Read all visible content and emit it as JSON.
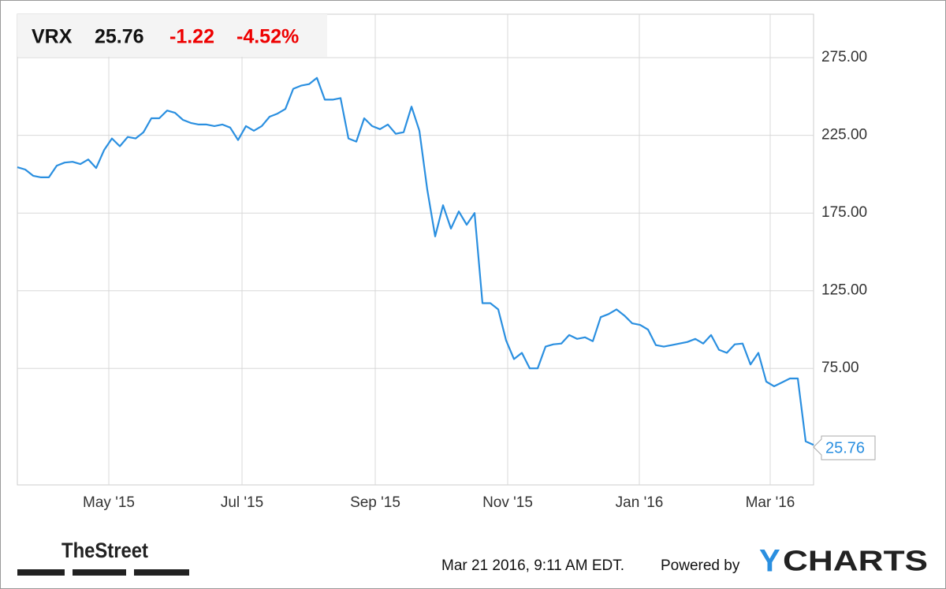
{
  "chart_data": {
    "type": "line",
    "header": {
      "symbol": "VRX",
      "price": "25.76",
      "change": "-1.22",
      "change_pct": "-4.52%"
    },
    "color": "#2a8fe0",
    "values": [
      204.5,
      203,
      199,
      198,
      198,
      205.5,
      207.5,
      208,
      206.5,
      209.5,
      204,
      215.5,
      223,
      218,
      224,
      223,
      227,
      236,
      236,
      241,
      239.5,
      235,
      233,
      232,
      232,
      231,
      232,
      230,
      222,
      231,
      228,
      231,
      237,
      239,
      242,
      255,
      257,
      258,
      262,
      248,
      248,
      249,
      223,
      221,
      236,
      231,
      229,
      232,
      226,
      227,
      243.5,
      228,
      190,
      160,
      180,
      165,
      176,
      167.5,
      175,
      117,
      117,
      113,
      93,
      81,
      85,
      75,
      75,
      89,
      90.5,
      91,
      96.5,
      94,
      95,
      92.5,
      108,
      110,
      113,
      109,
      104,
      103,
      100,
      90,
      89,
      90,
      91,
      92,
      94,
      91,
      96.5,
      87,
      85,
      90.5,
      91,
      77.5,
      85,
      66.5,
      63.5,
      66,
      68.5,
      68.5,
      28,
      25.76
    ],
    "xlim": [
      0,
      101
    ],
    "xticks": [
      {
        "value": 11.6,
        "label": "May '15"
      },
      {
        "value": 28.5,
        "label": "Jul '15"
      },
      {
        "value": 45.4,
        "label": "Sep '15"
      },
      {
        "value": 62.2,
        "label": "Nov '15"
      },
      {
        "value": 78.9,
        "label": "Jan '16"
      },
      {
        "value": 95.5,
        "label": "Mar '16"
      }
    ],
    "ylim": [
      0,
      303
    ],
    "yticks": [
      {
        "value": 75,
        "label": "75.00"
      },
      {
        "value": 125,
        "label": "125.00"
      },
      {
        "value": 175,
        "label": "175.00"
      },
      {
        "value": 225,
        "label": "225.00"
      },
      {
        "value": 275,
        "label": "275.00"
      }
    ],
    "grid": true
  },
  "footer": {
    "source": "TheStreet",
    "timestamp": "Mar 21 2016, 9:11 AM EDT.",
    "powered": "Powered by",
    "brand_y": "Y",
    "brand_rest": "CHARTS"
  }
}
